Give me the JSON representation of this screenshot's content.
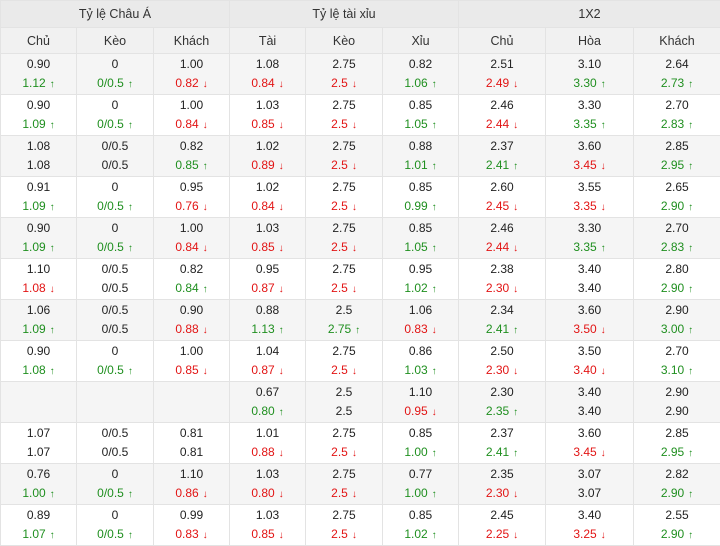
{
  "groups": [
    "Tỷ lệ Châu Á",
    "Tỷ lệ tài xỉu",
    "1X2"
  ],
  "columns": [
    "Chủ",
    "Kèo",
    "Khách",
    "Tài",
    "Kèo",
    "Xỉu",
    "Chủ",
    "Hòa",
    "Khách"
  ],
  "arrows": {
    "up": "↑",
    "down": "↓"
  },
  "rows": [
    [
      [
        "0.90",
        "1.12",
        "u"
      ],
      [
        "0",
        "0/0.5",
        "u"
      ],
      [
        "1.00",
        "0.82",
        "d"
      ],
      [
        "1.08",
        "0.84",
        "d"
      ],
      [
        "2.75",
        "2.5",
        "d"
      ],
      [
        "0.82",
        "1.06",
        "u"
      ],
      [
        "2.51",
        "2.49",
        "d"
      ],
      [
        "3.10",
        "3.30",
        "u"
      ],
      [
        "2.64",
        "2.73",
        "u"
      ]
    ],
    [
      [
        "0.90",
        "1.09",
        "u"
      ],
      [
        "0",
        "0/0.5",
        "u"
      ],
      [
        "1.00",
        "0.84",
        "d"
      ],
      [
        "1.03",
        "0.85",
        "d"
      ],
      [
        "2.75",
        "2.5",
        "d"
      ],
      [
        "0.85",
        "1.05",
        "u"
      ],
      [
        "2.46",
        "2.44",
        "d"
      ],
      [
        "3.30",
        "3.35",
        "u"
      ],
      [
        "2.70",
        "2.83",
        "u"
      ]
    ],
    [
      [
        "1.08",
        "1.08",
        ""
      ],
      [
        "0/0.5",
        "0/0.5",
        ""
      ],
      [
        "0.82",
        "0.85",
        "u"
      ],
      [
        "1.02",
        "0.89",
        "d"
      ],
      [
        "2.75",
        "2.5",
        "d"
      ],
      [
        "0.88",
        "1.01",
        "u"
      ],
      [
        "2.37",
        "2.41",
        "u"
      ],
      [
        "3.60",
        "3.45",
        "d"
      ],
      [
        "2.85",
        "2.95",
        "u"
      ]
    ],
    [
      [
        "0.91",
        "1.09",
        "u"
      ],
      [
        "0",
        "0/0.5",
        "u"
      ],
      [
        "0.95",
        "0.76",
        "d"
      ],
      [
        "1.02",
        "0.84",
        "d"
      ],
      [
        "2.75",
        "2.5",
        "d"
      ],
      [
        "0.85",
        "0.99",
        "u"
      ],
      [
        "2.60",
        "2.45",
        "d"
      ],
      [
        "3.55",
        "3.35",
        "d"
      ],
      [
        "2.65",
        "2.90",
        "u"
      ]
    ],
    [
      [
        "0.90",
        "1.09",
        "u"
      ],
      [
        "0",
        "0/0.5",
        "u"
      ],
      [
        "1.00",
        "0.84",
        "d"
      ],
      [
        "1.03",
        "0.85",
        "d"
      ],
      [
        "2.75",
        "2.5",
        "d"
      ],
      [
        "0.85",
        "1.05",
        "u"
      ],
      [
        "2.46",
        "2.44",
        "d"
      ],
      [
        "3.30",
        "3.35",
        "u"
      ],
      [
        "2.70",
        "2.83",
        "u"
      ]
    ],
    [
      [
        "1.10",
        "1.08",
        "d"
      ],
      [
        "0/0.5",
        "0/0.5",
        ""
      ],
      [
        "0.82",
        "0.84",
        "u"
      ],
      [
        "0.95",
        "0.87",
        "d"
      ],
      [
        "2.75",
        "2.5",
        "d"
      ],
      [
        "0.95",
        "1.02",
        "u"
      ],
      [
        "2.38",
        "2.30",
        "d"
      ],
      [
        "3.40",
        "3.40",
        ""
      ],
      [
        "2.80",
        "2.90",
        "u"
      ]
    ],
    [
      [
        "1.06",
        "1.09",
        "u"
      ],
      [
        "0/0.5",
        "0/0.5",
        ""
      ],
      [
        "0.90",
        "0.88",
        "d"
      ],
      [
        "0.88",
        "1.13",
        "u"
      ],
      [
        "2.5",
        "2.75",
        "u"
      ],
      [
        "1.06",
        "0.83",
        "d"
      ],
      [
        "2.34",
        "2.41",
        "u"
      ],
      [
        "3.60",
        "3.50",
        "d"
      ],
      [
        "2.90",
        "3.00",
        "u"
      ]
    ],
    [
      [
        "0.90",
        "1.08",
        "u"
      ],
      [
        "0",
        "0/0.5",
        "u"
      ],
      [
        "1.00",
        "0.85",
        "d"
      ],
      [
        "1.04",
        "0.87",
        "d"
      ],
      [
        "2.75",
        "2.5",
        "d"
      ],
      [
        "0.86",
        "1.03",
        "u"
      ],
      [
        "2.50",
        "2.30",
        "d"
      ],
      [
        "3.50",
        "3.40",
        "d"
      ],
      [
        "2.70",
        "3.10",
        "u"
      ]
    ],
    [
      [
        "",
        "",
        ""
      ],
      [
        "",
        "",
        ""
      ],
      [
        "",
        "",
        ""
      ],
      [
        "0.67",
        "0.80",
        "u"
      ],
      [
        "2.5",
        "2.5",
        ""
      ],
      [
        "1.10",
        "0.95",
        "d"
      ],
      [
        "2.30",
        "2.35",
        "u"
      ],
      [
        "3.40",
        "3.40",
        ""
      ],
      [
        "2.90",
        "2.90",
        ""
      ]
    ],
    [
      [
        "1.07",
        "1.07",
        ""
      ],
      [
        "0/0.5",
        "0/0.5",
        ""
      ],
      [
        "0.81",
        "0.81",
        ""
      ],
      [
        "1.01",
        "0.88",
        "d"
      ],
      [
        "2.75",
        "2.5",
        "d"
      ],
      [
        "0.85",
        "1.00",
        "u"
      ],
      [
        "2.37",
        "2.41",
        "u"
      ],
      [
        "3.60",
        "3.45",
        "d"
      ],
      [
        "2.85",
        "2.95",
        "u"
      ]
    ],
    [
      [
        "0.76",
        "1.00",
        "u"
      ],
      [
        "0",
        "0/0.5",
        "u"
      ],
      [
        "1.10",
        "0.86",
        "d"
      ],
      [
        "1.03",
        "0.80",
        "d"
      ],
      [
        "2.75",
        "2.5",
        "d"
      ],
      [
        "0.77",
        "1.00",
        "u"
      ],
      [
        "2.35",
        "2.30",
        "d"
      ],
      [
        "3.07",
        "3.07",
        ""
      ],
      [
        "2.82",
        "2.90",
        "u"
      ]
    ],
    [
      [
        "0.89",
        "1.07",
        "u"
      ],
      [
        "0",
        "0/0.5",
        "u"
      ],
      [
        "0.99",
        "0.83",
        "d"
      ],
      [
        "1.03",
        "0.85",
        "d"
      ],
      [
        "2.75",
        "2.5",
        "d"
      ],
      [
        "0.85",
        "1.02",
        "u"
      ],
      [
        "2.45",
        "2.25",
        "d"
      ],
      [
        "3.40",
        "3.25",
        "d"
      ],
      [
        "2.55",
        "2.90",
        "u"
      ]
    ]
  ]
}
